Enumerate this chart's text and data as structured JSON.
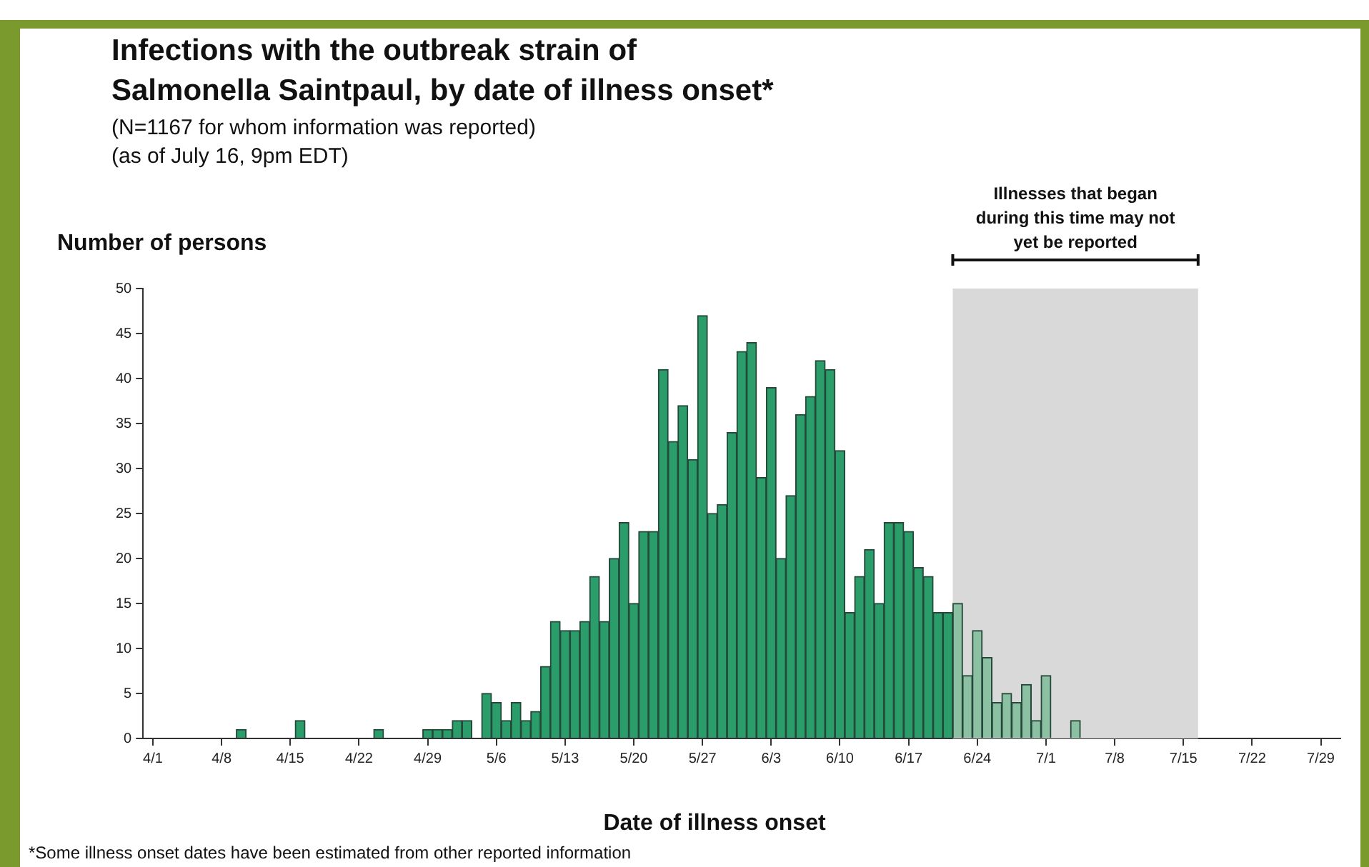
{
  "chart_data": {
    "type": "bar",
    "title": "Infections with the outbreak strain of Salmonella Saintpaul, by date of illness onset*",
    "subtitle": "(N=1167 for whom information was reported)\n(as of July 16, 9pm EDT)",
    "xlabel": "Date of illness onset",
    "ylabel": "Number of persons",
    "x": [
      "--04-10",
      "--04-11",
      "--04-12",
      "--04-13",
      "--04-14",
      "--04-15",
      "--04-16",
      "--04-17",
      "--04-18",
      "--04-19",
      "--04-20",
      "--04-21",
      "--04-22",
      "--04-23",
      "--04-24",
      "--04-25",
      "--04-26",
      "--04-27",
      "--04-28",
      "--04-29",
      "--04-30",
      "--05-01",
      "--05-02",
      "--05-03",
      "--05-04",
      "--05-05",
      "--05-06",
      "--05-07",
      "--05-08",
      "--05-09",
      "--05-10",
      "--05-11",
      "--05-12",
      "--05-13",
      "--05-14",
      "--05-15",
      "--05-16",
      "--05-17",
      "--05-18",
      "--05-19",
      "--05-20",
      "--05-21",
      "--05-22",
      "--05-23",
      "--05-24",
      "--05-25",
      "--05-26",
      "--05-27",
      "--05-28",
      "--05-29",
      "--05-30",
      "--05-31",
      "--06-01",
      "--06-02",
      "--06-03",
      "--06-04",
      "--06-05",
      "--06-06",
      "--06-07",
      "--06-08",
      "--06-09",
      "--06-10",
      "--06-11",
      "--06-12",
      "--06-13",
      "--06-14",
      "--06-15",
      "--06-16",
      "--06-17",
      "--06-18",
      "--06-19",
      "--06-20",
      "--06-21",
      "--06-22",
      "--06-23",
      "--06-24",
      "--06-25",
      "--06-26",
      "--06-27",
      "--06-28",
      "--06-29",
      "--06-30",
      "--07-01",
      "--07-02",
      "--07-03",
      "--07-04"
    ],
    "values": [
      1,
      0,
      0,
      0,
      0,
      0,
      2,
      0,
      0,
      0,
      0,
      0,
      0,
      0,
      1,
      0,
      0,
      0,
      0,
      1,
      1,
      1,
      2,
      2,
      0,
      5,
      4,
      2,
      4,
      2,
      3,
      8,
      13,
      12,
      12,
      13,
      18,
      13,
      20,
      24,
      15,
      23,
      23,
      41,
      33,
      37,
      31,
      47,
      25,
      26,
      34,
      43,
      44,
      29,
      39,
      20,
      27,
      36,
      38,
      42,
      41,
      32,
      14,
      18,
      21,
      15,
      24,
      24,
      23,
      19,
      18,
      14,
      14,
      15,
      7,
      12,
      9,
      4,
      5,
      4,
      6,
      2,
      7,
      0,
      0,
      2
    ],
    "colors": [
      "#2a9d6b",
      "#2a9d6b",
      "#2a9d6b",
      "#2a9d6b",
      "#2a9d6b",
      "#2a9d6b",
      "#2a9d6b",
      "#2a9d6b",
      "#2a9d6b",
      "#2a9d6b",
      "#2a9d6b",
      "#2a9d6b",
      "#2a9d6b",
      "#2a9d6b",
      "#2a9d6b",
      "#2a9d6b",
      "#2a9d6b",
      "#2a9d6b",
      "#2a9d6b",
      "#2a9d6b",
      "#2a9d6b",
      "#2a9d6b",
      "#2a9d6b",
      "#2a9d6b",
      "#2a9d6b",
      "#2a9d6b",
      "#2a9d6b",
      "#2a9d6b",
      "#2a9d6b",
      "#2a9d6b",
      "#2a9d6b",
      "#2a9d6b",
      "#2a9d6b",
      "#2a9d6b",
      "#2a9d6b",
      "#2a9d6b",
      "#2a9d6b",
      "#2a9d6b",
      "#2a9d6b",
      "#2a9d6b",
      "#2a9d6b",
      "#2a9d6b",
      "#2a9d6b",
      "#2a9d6b",
      "#2a9d6b",
      "#2a9d6b",
      "#2a9d6b",
      "#2a9d6b",
      "#2a9d6b",
      "#2a9d6b",
      "#2a9d6b",
      "#2a9d6b",
      "#2a9d6b",
      "#2a9d6b",
      "#2a9d6b",
      "#2a9d6b",
      "#2a9d6b",
      "#2a9d6b",
      "#2a9d6b",
      "#2a9d6b",
      "#2a9d6b",
      "#2a9d6b",
      "#2a9d6b",
      "#2a9d6b",
      "#2a9d6b",
      "#2a9d6b",
      "#2a9d6b",
      "#2a9d6b",
      "#2a9d6b",
      "#2a9d6b",
      "#2a9d6b",
      "#2a9d6b",
      "#2a9d6b",
      "#8cc0a2",
      "#8cc0a2",
      "#8cc0a2",
      "#8cc0a2",
      "#8cc0a2",
      "#8cc0a2",
      "#8cc0a2",
      "#8cc0a2",
      "#8cc0a2",
      "#8cc0a2",
      "#8cc0a2",
      "#8cc0a2",
      "#8cc0a2"
    ],
    "xlim": [
      "--03-31",
      "--07-31"
    ],
    "xticks": [
      {
        "value": "--04-01",
        "label": "4/1"
      },
      {
        "value": "--04-08",
        "label": "4/8"
      },
      {
        "value": "--04-15",
        "label": "4/15"
      },
      {
        "value": "--04-22",
        "label": "4/22"
      },
      {
        "value": "--04-29",
        "label": "4/29"
      },
      {
        "value": "--05-06",
        "label": "5/6"
      },
      {
        "value": "--05-13",
        "label": "5/13"
      },
      {
        "value": "--05-20",
        "label": "5/20"
      },
      {
        "value": "--05-27",
        "label": "5/27"
      },
      {
        "value": "--06-03",
        "label": "6/3"
      },
      {
        "value": "--06-10",
        "label": "6/10"
      },
      {
        "value": "--06-17",
        "label": "6/17"
      },
      {
        "value": "--06-24",
        "label": "6/24"
      },
      {
        "value": "--07-01",
        "label": "7/1"
      },
      {
        "value": "--07-08",
        "label": "7/8"
      },
      {
        "value": "--07-15",
        "label": "7/15"
      },
      {
        "value": "--07-22",
        "label": "7/22"
      },
      {
        "value": "--07-29",
        "label": "7/29"
      }
    ],
    "ylim": [
      0,
      50
    ],
    "yticks": [
      0,
      5,
      10,
      15,
      20,
      25,
      30,
      35,
      40,
      45,
      50
    ],
    "bands": [
      {
        "axis": "x",
        "from": "--06-21T12:00",
        "to": "--07-16T12:00",
        "label": "Illnesses that began during this time may not yet be reported",
        "color": "#d9d9d9"
      }
    ],
    "annotations": [
      "*Some illness onset dates have been estimated from other reported information"
    ],
    "grid": false,
    "legend": false
  }
}
